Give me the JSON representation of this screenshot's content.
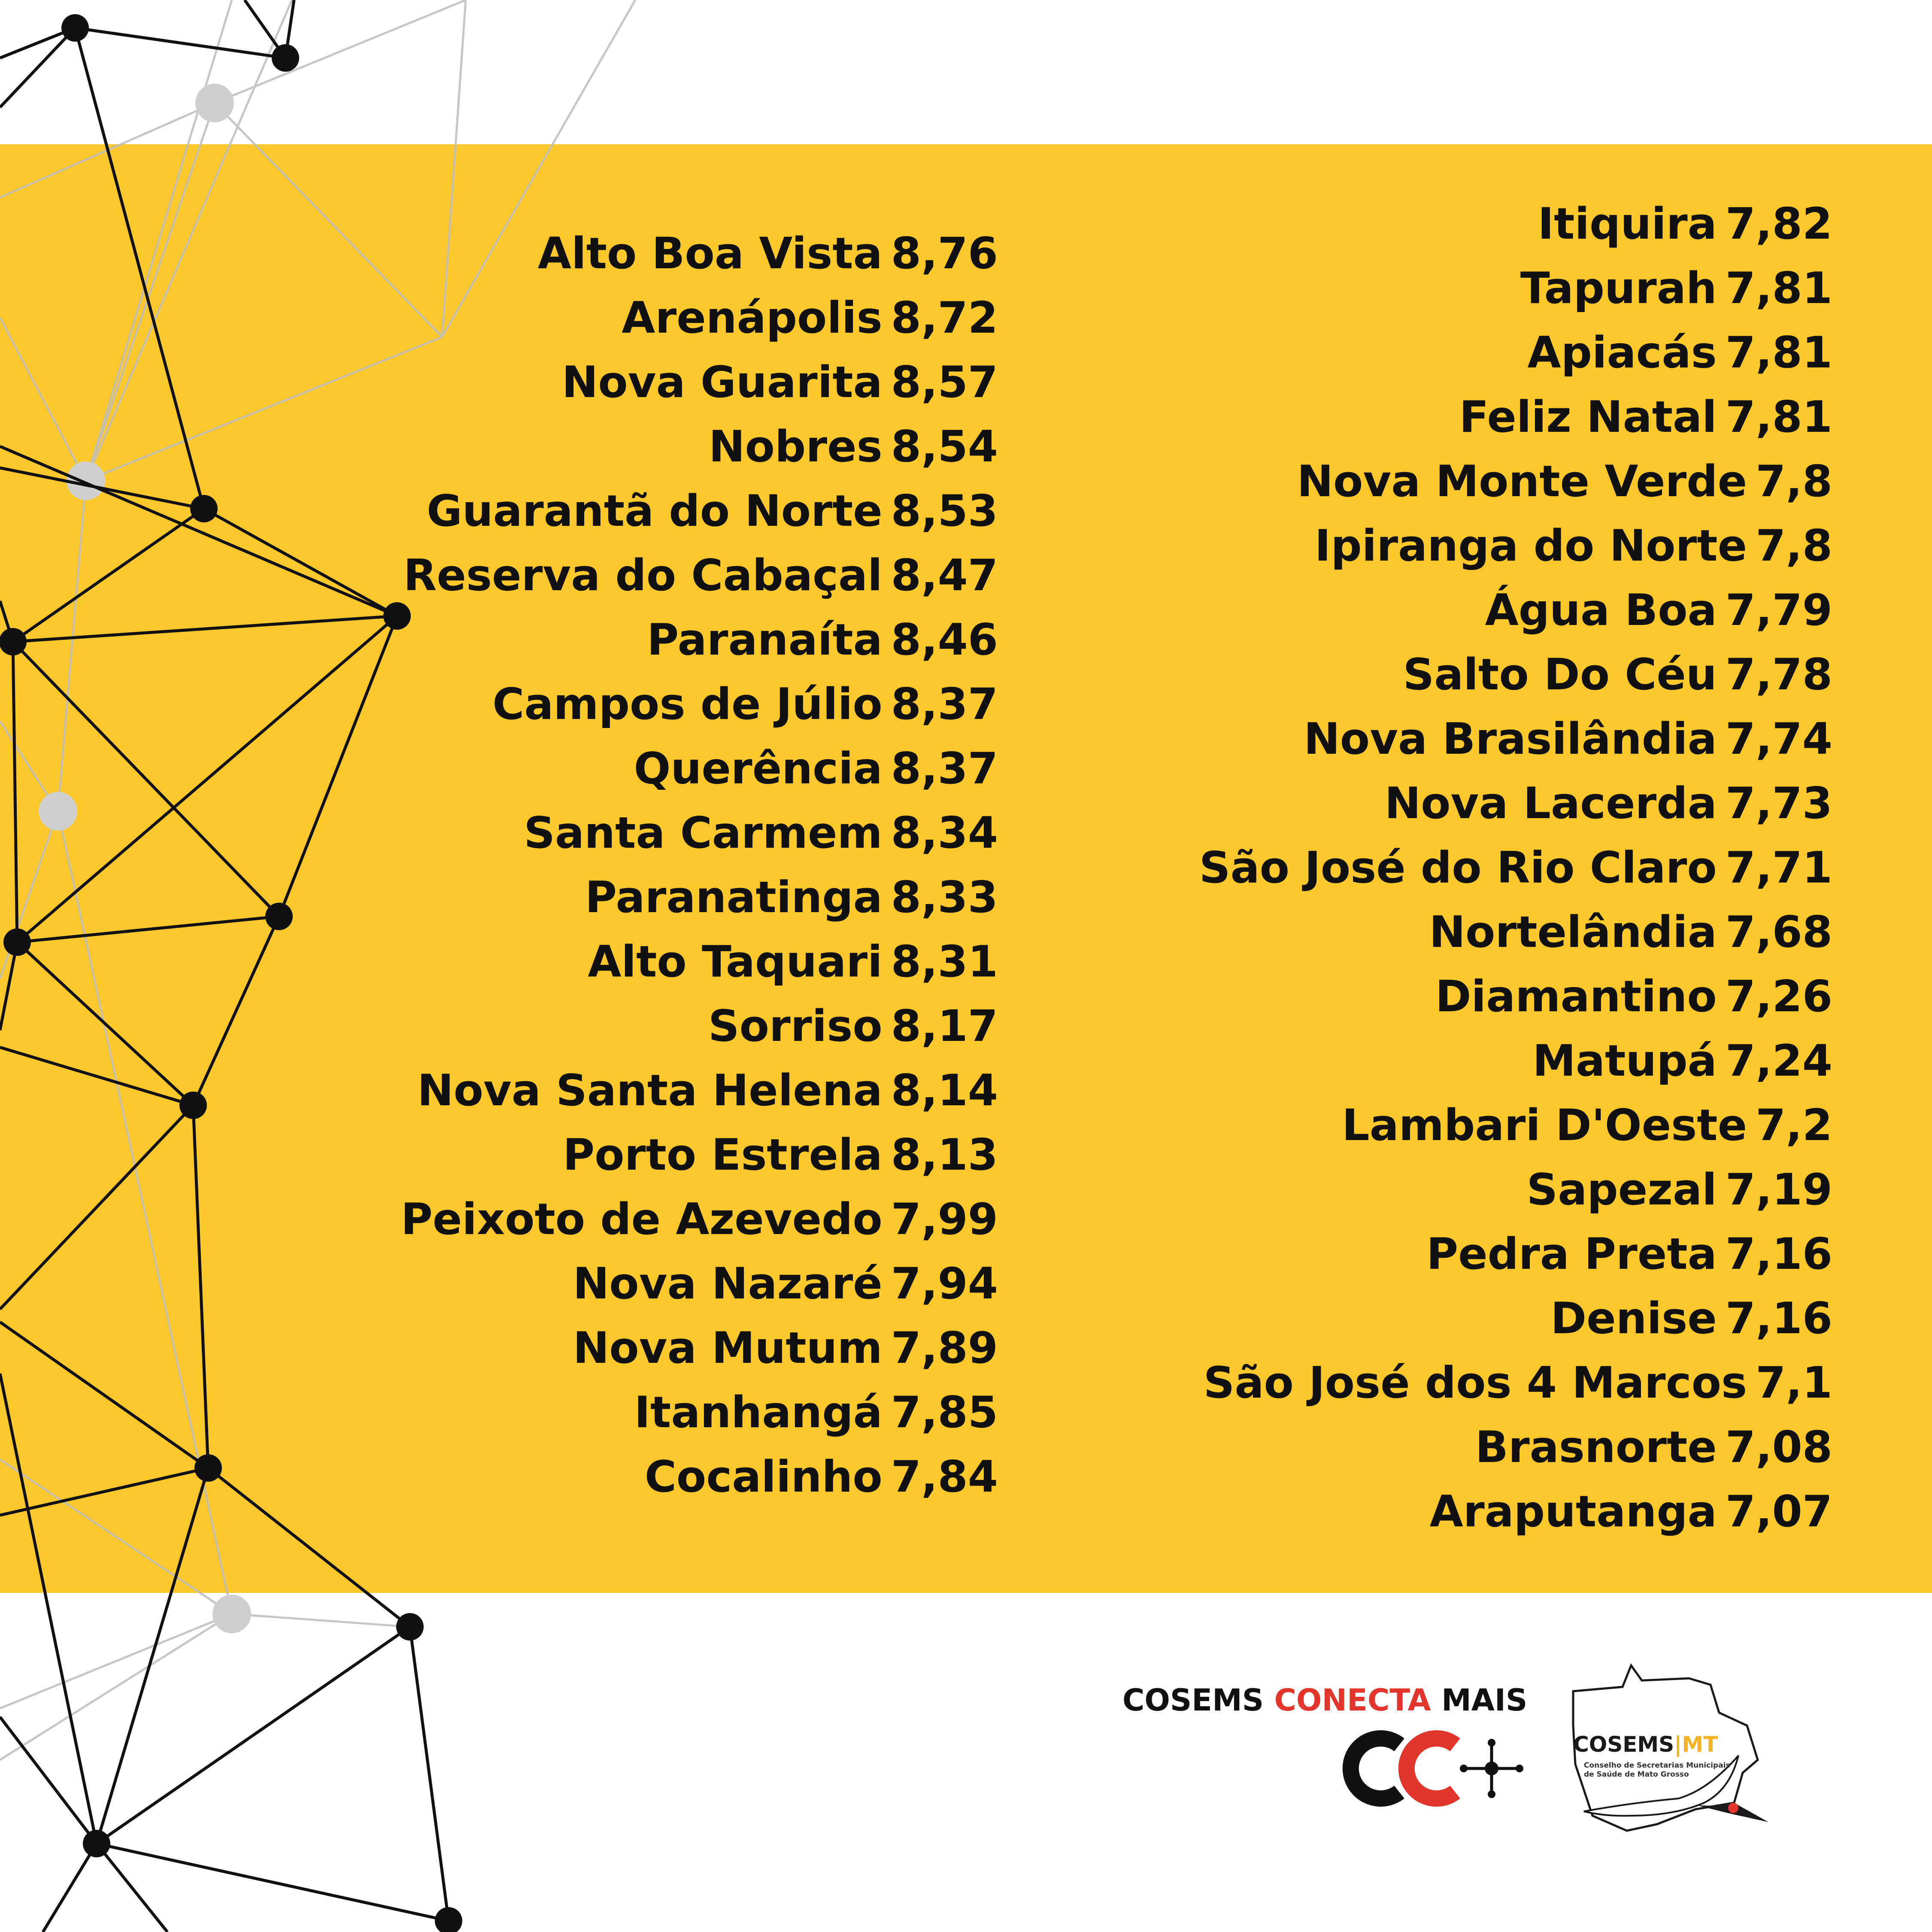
{
  "rankings": {
    "left_column": [
      {
        "name": "Alto Boa Vista",
        "score": "8,76"
      },
      {
        "name": "Arenápolis",
        "score": "8,72"
      },
      {
        "name": "Nova Guarita",
        "score": "8,57"
      },
      {
        "name": "Nobres",
        "score": "8,54"
      },
      {
        "name": "Guarantã do Norte",
        "score": "8,53"
      },
      {
        "name": "Reserva do Cabaçal",
        "score": "8,47"
      },
      {
        "name": "Paranaíta",
        "score": "8,46"
      },
      {
        "name": "Campos de Júlio",
        "score": "8,37"
      },
      {
        "name": "Querência",
        "score": "8,37"
      },
      {
        "name": "Santa Carmem",
        "score": "8,34"
      },
      {
        "name": "Paranatinga",
        "score": "8,33"
      },
      {
        "name": "Alto Taquari",
        "score": "8,31"
      },
      {
        "name": "Sorriso",
        "score": "8,17"
      },
      {
        "name": "Nova Santa Helena",
        "score": "8,14"
      },
      {
        "name": "Porto Estrela",
        "score": "8,13"
      },
      {
        "name": "Peixoto de Azevedo",
        "score": "7,99"
      },
      {
        "name": "Nova Nazaré",
        "score": "7,94"
      },
      {
        "name": "Nova Mutum",
        "score": "7,89"
      },
      {
        "name": "Itanhangá",
        "score": "7,85"
      },
      {
        "name": "Cocalinho",
        "score": "7,84"
      }
    ],
    "right_column": [
      {
        "name": "Itiquira",
        "score": "7,82"
      },
      {
        "name": "Tapurah",
        "score": "7,81"
      },
      {
        "name": "Apiacás",
        "score": "7,81"
      },
      {
        "name": "Feliz Natal",
        "score": "7,81"
      },
      {
        "name": "Nova Monte Verde",
        "score": "7,8"
      },
      {
        "name": "Ipiranga do Norte",
        "score": "7,8"
      },
      {
        "name": "Água Boa",
        "score": "7,79"
      },
      {
        "name": "Salto Do Céu",
        "score": "7,78"
      },
      {
        "name": "Nova Brasilândia",
        "score": "7,74"
      },
      {
        "name": "Nova Lacerda",
        "score": "7,73"
      },
      {
        "name": "São José do Rio Claro",
        "score": "7,71"
      },
      {
        "name": "Nortelândia",
        "score": "7,68"
      },
      {
        "name": "Diamantino",
        "score": "7,26"
      },
      {
        "name": "Matupá",
        "score": "7,24"
      },
      {
        "name": "Lambari D'Oeste",
        "score": "7,2"
      },
      {
        "name": "Sapezal",
        "score": "7,19"
      },
      {
        "name": "Pedra Preta",
        "score": "7,16"
      },
      {
        "name": "Denise",
        "score": "7,16"
      },
      {
        "name": "São José dos 4 Marcos",
        "score": "7,1"
      },
      {
        "name": "Brasnorte",
        "score": "7,08"
      },
      {
        "name": "Araputanga",
        "score": "7,07"
      }
    ]
  },
  "branding": {
    "program_part1": "COSEMS ",
    "program_accent": "CONECTA",
    "program_part2": " MAIS",
    "org_name": "COSEMS",
    "org_separator": "|",
    "org_state": "MT",
    "org_subtitle": "Conselho de Secretarias Municipais de Saúde de Mato Grosso"
  },
  "colors": {
    "band": "#FCC82B",
    "text": "#111111",
    "accent_red": "#E2352B",
    "logo_gold": "#F2B324"
  },
  "icons": [
    "network-decoration",
    "cc-plus-logo-icon",
    "mato-grosso-map-icon",
    "heron-bird-icon"
  ]
}
